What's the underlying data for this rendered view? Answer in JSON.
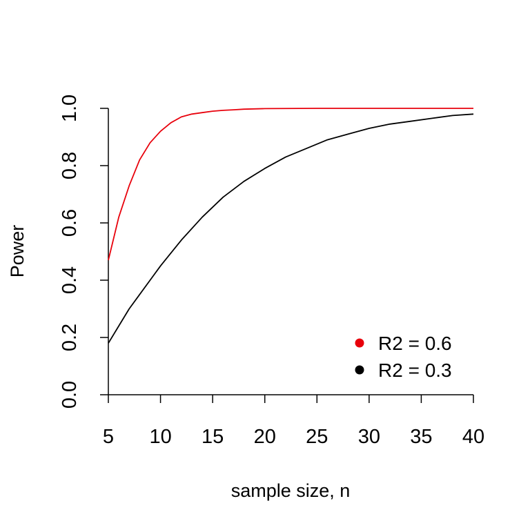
{
  "chart_data": {
    "type": "line",
    "title": "",
    "xlabel": "sample size, n",
    "ylabel": "Power",
    "xlim": [
      5,
      40
    ],
    "ylim": [
      0,
      1
    ],
    "x_ticks": [
      "5",
      "10",
      "15",
      "20",
      "25",
      "30",
      "35",
      "40"
    ],
    "y_ticks": [
      "0.0",
      "0.2",
      "0.4",
      "0.6",
      "0.8",
      "1.0"
    ],
    "grid": false,
    "legend_position": "bottom-right",
    "series": [
      {
        "name": "R2 = 0.6",
        "color": "#e8000b",
        "x": [
          5,
          6,
          7,
          8,
          9,
          10,
          11,
          12,
          13,
          14,
          15,
          16,
          17,
          18,
          20,
          25,
          30,
          35,
          40
        ],
        "y": [
          0.47,
          0.62,
          0.73,
          0.82,
          0.88,
          0.92,
          0.95,
          0.97,
          0.98,
          0.985,
          0.99,
          0.993,
          0.995,
          0.997,
          0.999,
          1.0,
          1.0,
          1.0,
          1.0
        ]
      },
      {
        "name": "R2 = 0.3",
        "color": "#000000",
        "x": [
          5,
          6,
          7,
          8,
          9,
          10,
          12,
          14,
          16,
          18,
          20,
          22,
          24,
          26,
          28,
          30,
          32,
          34,
          36,
          38,
          40
        ],
        "y": [
          0.18,
          0.24,
          0.3,
          0.35,
          0.4,
          0.45,
          0.54,
          0.62,
          0.69,
          0.745,
          0.79,
          0.83,
          0.86,
          0.89,
          0.91,
          0.93,
          0.945,
          0.955,
          0.965,
          0.975,
          0.98
        ]
      }
    ]
  }
}
